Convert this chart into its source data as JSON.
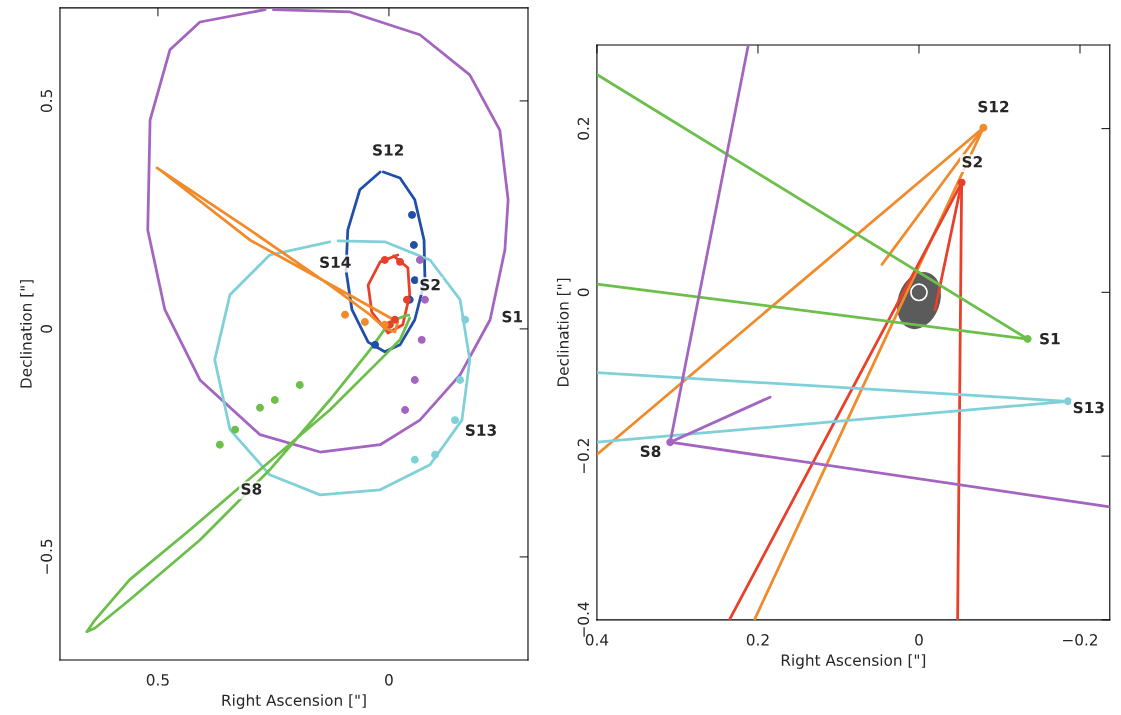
{
  "chart_data": [
    {
      "type": "line",
      "xlabel": "Right Ascension [\"]",
      "ylabel": "Declination [\"]",
      "xlim": [
        0.712,
        -0.301
      ],
      "ylim": [
        -0.726,
        0.704
      ],
      "xticks": [
        0.5,
        0
      ],
      "yticks": [
        -0.5,
        0.5,
        {
          "value": 0,
          "label": "0"
        }
      ],
      "grid": false,
      "legend": false,
      "series": [
        {
          "color": "#a365c0",
          "x": [
            0.268,
            0.409,
            0.474,
            0.517,
            0.522,
            0.485,
            0.409,
            0.279,
            0.149,
            0.019,
            -0.067,
            -0.154,
            -0.219,
            -0.251,
            -0.258,
            -0.24,
            -0.175,
            -0.067,
            0.084,
            0.25
          ],
          "values": [
            0.7,
            0.673,
            0.612,
            0.458,
            0.217,
            0.042,
            -0.112,
            -0.232,
            -0.27,
            -0.254,
            -0.2,
            -0.101,
            0.02,
            0.173,
            0.283,
            0.436,
            0.557,
            0.645,
            0.695,
            0.7
          ]
        },
        {
          "color": "#1f4fa8",
          "x": [
            0.019,
            0.063,
            0.089,
            0.093,
            0.08,
            0.045,
            0.009,
            -0.024,
            -0.056,
            -0.078,
            -0.076,
            -0.056,
            -0.024,
            0.012
          ],
          "values": [
            0.344,
            0.305,
            0.217,
            0.129,
            0.042,
            -0.029,
            -0.05,
            -0.035,
            0.02,
            0.107,
            0.195,
            0.283,
            0.331,
            0.344
          ]
        },
        {
          "color": "#e8402a",
          "x": [
            -0.019,
            0.019,
            0.045,
            0.037,
            0.002,
            -0.03,
            -0.045,
            -0.041,
            -0.01
          ],
          "values": [
            0.162,
            0.147,
            0.096,
            0.037,
            -0.009,
            0.009,
            0.075,
            0.134,
            0.16
          ]
        },
        {
          "color": "#7fd0d8",
          "x": [
            0.128,
            0.258,
            0.344,
            0.377,
            0.344,
            0.258,
            0.149,
            0.019,
            -0.089,
            -0.158,
            -0.175,
            -0.154,
            -0.089,
            0.009,
            0.11
          ],
          "values": [
            0.191,
            0.162,
            0.075,
            -0.068,
            -0.221,
            -0.32,
            -0.364,
            -0.353,
            -0.298,
            -0.2,
            -0.068,
            0.064,
            0.151,
            0.191,
            0.193
          ]
        },
        {
          "color": "#6cbf4a",
          "x": [
            -0.045,
            -0.024,
            0.019,
            0.128,
            0.279,
            0.431,
            0.561,
            0.636,
            0.654,
            0.636,
            0.561,
            0.409,
            0.258,
            0.128,
            0.041,
            -0.002,
            -0.035,
            -0.043
          ],
          "values": [
            0.024,
            -0.024,
            -0.068,
            -0.178,
            -0.309,
            -0.441,
            -0.55,
            -0.638,
            -0.664,
            -0.656,
            -0.594,
            -0.463,
            -0.309,
            -0.156,
            -0.046,
            0.015,
            0.029,
            0.03
          ]
        },
        {
          "color": "#f08a2a",
          "x": [
            0.502,
            0.301,
            0.128,
            0.041,
            0.009,
            -0.013,
            -0.019,
            0.009,
            0.106,
            0.301,
            0.496
          ],
          "values": [
            0.353,
            0.217,
            0.096,
            0.031,
            0.002,
            -0.007,
            0.015,
            0.031,
            0.086,
            0.195,
            0.349
          ]
        },
        {
          "type": "scatter",
          "color": "#a365c0",
          "x": [
            -0.067,
            -0.078,
            -0.071,
            -0.056,
            -0.035
          ],
          "values": [
            0.151,
            0.064,
            -0.024,
            -0.112,
            -0.178
          ]
        },
        {
          "type": "scatter",
          "color": "#1f4fa8",
          "x": [
            -0.05,
            -0.054,
            -0.056,
            -0.045,
            0.03
          ],
          "values": [
            0.25,
            0.184,
            0.107,
            0.064,
            -0.035
          ]
        },
        {
          "type": "scatter",
          "color": "#e8402a",
          "x": [
            0.009,
            -0.024,
            -0.039,
            -0.013,
            -0.002
          ],
          "values": [
            0.151,
            0.147,
            0.064,
            0.02,
            0.009
          ]
        },
        {
          "type": "scatter",
          "color": "#7fd0d8",
          "x": [
            -0.165,
            -0.154,
            -0.143,
            -0.1,
            -0.056
          ],
          "values": [
            0.02,
            -0.112,
            -0.2,
            -0.276,
            -0.287
          ]
        },
        {
          "type": "scatter",
          "color": "#6cbf4a",
          "x": [
            0.193,
            0.247,
            0.279,
            0.333,
            0.366
          ],
          "values": [
            -0.123,
            -0.156,
            -0.173,
            -0.221,
            -0.254
          ]
        },
        {
          "type": "scatter",
          "color": "#f08a2a",
          "x": [
            0.095,
            0.052,
            0.009
          ],
          "values": [
            0.031,
            0.015,
            0.009
          ]
        }
      ],
      "annotations": [
        {
          "text": "S12",
          "x": 0.019,
          "y": 0.344
        },
        {
          "text": "S2",
          "x": -0.045,
          "y": 0.075
        },
        {
          "text": "S1",
          "x": -0.219,
          "y": 0.02
        },
        {
          "text": "S14",
          "x": 0.128,
          "y": 0.096
        },
        {
          "text": "S8",
          "x": 0.279,
          "y": -0.309
        },
        {
          "text": "S13",
          "x": -0.158,
          "y": -0.2
        }
      ]
    },
    {
      "type": "line",
      "xlabel": "Right Ascension [\"]",
      "ylabel": "Declination [\"]",
      "xlim": [
        0.4,
        -0.237
      ],
      "ylim": [
        -0.4,
        0.302
      ],
      "xticks": [
        0.4,
        0.2,
        {
          "value": 0,
          "label": "0"
        },
        -0.2
      ],
      "yticks": [
        -0.4,
        -0.2,
        {
          "value": 0,
          "label": "0"
        },
        0.2
      ],
      "grid": false,
      "legend": false,
      "series": [
        {
          "color": "#f08a2a",
          "x": [
            0.4,
            -0.08,
            0.204
          ],
          "values": [
            -0.198,
            0.201,
            -0.399
          ]
        },
        {
          "color": "#f08a2a",
          "x": [
            -0.08,
            0.046
          ],
          "values": [
            0.201,
            0.034
          ]
        },
        {
          "color": "#e8402a",
          "x": [
            0.235,
            -0.053,
            -0.048
          ],
          "values": [
            -0.399,
            0.134,
            -0.399
          ]
        },
        {
          "color": "#e8402a",
          "x": [
            -0.053,
            -0.02
          ],
          "values": [
            0.134,
            -0.021
          ]
        },
        {
          "color": "#6cbf4a",
          "x": [
            0.4,
            -0.135,
            0.4
          ],
          "values": [
            0.266,
            -0.057,
            0.01
          ]
        },
        {
          "color": "#7fd0d8",
          "x": [
            0.4,
            -0.185,
            0.4
          ],
          "values": [
            -0.098,
            -0.133,
            -0.183
          ]
        },
        {
          "color": "#a365c0",
          "x": [
            0.212,
            0.309,
            -0.237
          ],
          "values": [
            0.302,
            -0.183,
            -0.262
          ]
        },
        {
          "color": "#a365c0",
          "x": [
            0.309,
            0.185
          ],
          "values": [
            -0.183,
            -0.128
          ]
        },
        {
          "type": "scatter",
          "color": "#f08a2a",
          "x": [
            -0.08
          ],
          "values": [
            0.201
          ]
        },
        {
          "type": "scatter",
          "color": "#e8402a",
          "x": [
            -0.053
          ],
          "values": [
            0.134
          ]
        },
        {
          "type": "scatter",
          "color": "#6cbf4a",
          "x": [
            -0.135
          ],
          "values": [
            -0.057
          ]
        },
        {
          "type": "scatter",
          "color": "#7fd0d8",
          "x": [
            -0.185
          ],
          "values": [
            -0.133
          ]
        },
        {
          "type": "scatter",
          "color": "#a365c0",
          "x": [
            0.309
          ],
          "values": [
            -0.183
          ]
        }
      ],
      "annotations": [
        {
          "text": "S12",
          "x": -0.08,
          "y": 0.201
        },
        {
          "text": "S2",
          "x": -0.053,
          "y": 0.134
        },
        {
          "text": "S1",
          "x": -0.135,
          "y": -0.057
        },
        {
          "text": "S13",
          "x": -0.185,
          "y": -0.133
        },
        {
          "text": "S8",
          "x": 0.309,
          "y": -0.183
        }
      ]
    }
  ]
}
